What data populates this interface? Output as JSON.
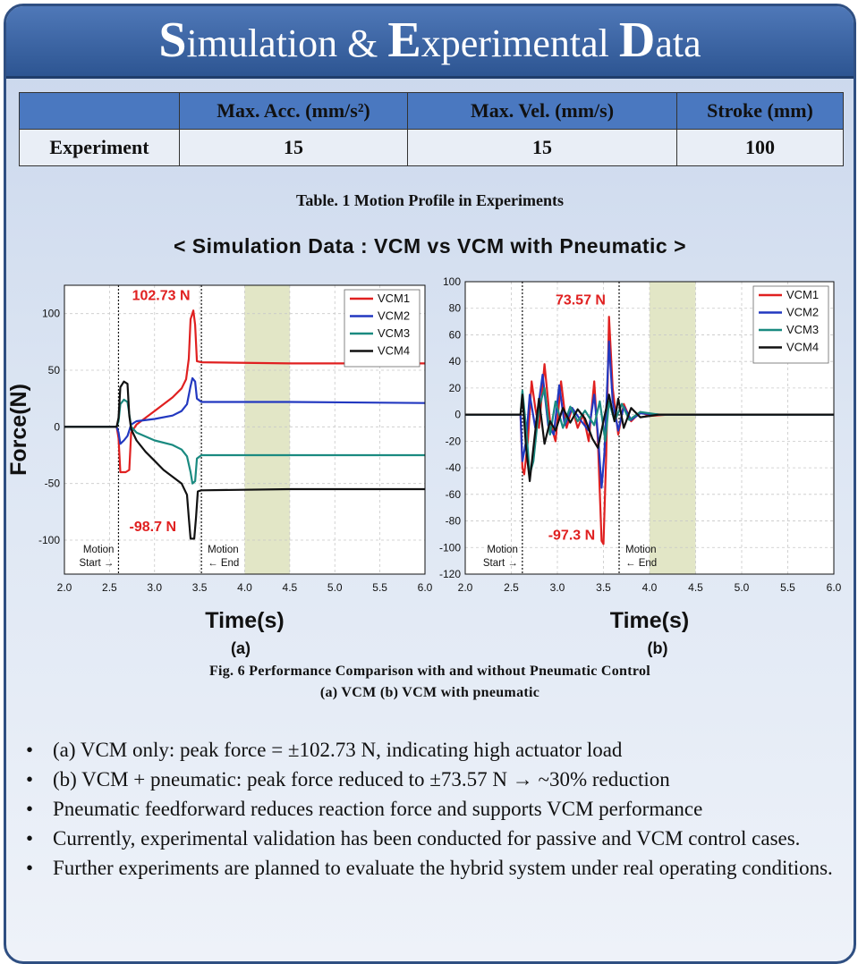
{
  "title": {
    "parts": [
      [
        "S",
        "imulation & "
      ],
      [
        "E",
        "xperimental "
      ],
      [
        "D",
        "ata"
      ]
    ]
  },
  "table": {
    "headers": [
      "",
      "Max. Acc. (mm/s²)",
      "Max. Vel. (mm/s)",
      "Stroke (mm)"
    ],
    "rows": [
      [
        "Experiment",
        "15",
        "15",
        "100"
      ]
    ],
    "caption": "Table. 1 Motion Profile in Experiments"
  },
  "section_title": "< Simulation Data : VCM vs VCM with Pneumatic >",
  "chart_data": [
    {
      "type": "line",
      "panel_label": "(a)",
      "xlabel": "Time(s)",
      "ylabel": "Force(N)",
      "xlim": [
        2.0,
        6.0
      ],
      "ylim": [
        -130,
        125
      ],
      "xticks": [
        2.0,
        2.5,
        3.0,
        3.5,
        4.0,
        4.5,
        5.0,
        5.5,
        6.0
      ],
      "yticks": [
        -100,
        -50,
        0,
        50,
        100
      ],
      "grid": true,
      "legend": "top-right",
      "shaded_region": [
        4.0,
        4.5
      ],
      "markers": [
        {
          "x": 2.6,
          "label": "Motion Start →",
          "side": "left"
        },
        {
          "x": 3.52,
          "label": "Motion ← End",
          "side": "right"
        }
      ],
      "annotations": [
        {
          "text": "102.73 N",
          "x": 2.75,
          "y": 112
        },
        {
          "text": "-98.7 N",
          "x": 2.72,
          "y": -92
        }
      ],
      "series": [
        {
          "name": "VCM1",
          "color": "#e02020",
          "points": [
            [
              2.0,
              0
            ],
            [
              2.58,
              0
            ],
            [
              2.6,
              -10
            ],
            [
              2.62,
              -40
            ],
            [
              2.68,
              -40
            ],
            [
              2.72,
              -38
            ],
            [
              2.74,
              -5
            ],
            [
              2.8,
              2
            ],
            [
              3.0,
              14
            ],
            [
              3.2,
              26
            ],
            [
              3.3,
              34
            ],
            [
              3.35,
              42
            ],
            [
              3.38,
              60
            ],
            [
              3.4,
              95
            ],
            [
              3.43,
              102.7
            ],
            [
              3.45,
              90
            ],
            [
              3.47,
              58
            ],
            [
              3.52,
              57
            ],
            [
              4.5,
              56
            ],
            [
              6.0,
              56
            ]
          ]
        },
        {
          "name": "VCM2",
          "color": "#2238c0",
          "points": [
            [
              2.0,
              0
            ],
            [
              2.58,
              0
            ],
            [
              2.6,
              -5
            ],
            [
              2.62,
              -15
            ],
            [
              2.66,
              -12
            ],
            [
              2.7,
              -8
            ],
            [
              2.74,
              2
            ],
            [
              2.8,
              5
            ],
            [
              3.0,
              7
            ],
            [
              3.2,
              10
            ],
            [
              3.3,
              14
            ],
            [
              3.36,
              20
            ],
            [
              3.4,
              36
            ],
            [
              3.42,
              43
            ],
            [
              3.45,
              40
            ],
            [
              3.47,
              25
            ],
            [
              3.52,
              22
            ],
            [
              4.5,
              22
            ],
            [
              6.0,
              21
            ]
          ]
        },
        {
          "name": "VCM3",
          "color": "#1a8a80",
          "points": [
            [
              2.0,
              0
            ],
            [
              2.58,
              0
            ],
            [
              2.6,
              5
            ],
            [
              2.62,
              20
            ],
            [
              2.66,
              24
            ],
            [
              2.7,
              22
            ],
            [
              2.74,
              0
            ],
            [
              2.8,
              -5
            ],
            [
              3.0,
              -12
            ],
            [
              3.2,
              -16
            ],
            [
              3.3,
              -20
            ],
            [
              3.36,
              -26
            ],
            [
              3.4,
              -40
            ],
            [
              3.42,
              -50
            ],
            [
              3.45,
              -48
            ],
            [
              3.47,
              -28
            ],
            [
              3.52,
              -25
            ],
            [
              4.5,
              -25
            ],
            [
              6.0,
              -25
            ]
          ]
        },
        {
          "name": "VCM4",
          "color": "#111111",
          "points": [
            [
              2.0,
              0
            ],
            [
              2.58,
              0
            ],
            [
              2.6,
              8
            ],
            [
              2.62,
              35
            ],
            [
              2.66,
              40
            ],
            [
              2.7,
              38
            ],
            [
              2.72,
              10
            ],
            [
              2.74,
              -2
            ],
            [
              2.8,
              -12
            ],
            [
              2.9,
              -22
            ],
            [
              3.0,
              -30
            ],
            [
              3.1,
              -38
            ],
            [
              3.2,
              -44
            ],
            [
              3.3,
              -50
            ],
            [
              3.36,
              -60
            ],
            [
              3.38,
              -80
            ],
            [
              3.4,
              -98.7
            ],
            [
              3.44,
              -98.7
            ],
            [
              3.46,
              -80
            ],
            [
              3.48,
              -57
            ],
            [
              3.52,
              -56
            ],
            [
              4.5,
              -55
            ],
            [
              6.0,
              -55
            ]
          ]
        }
      ]
    },
    {
      "type": "line",
      "panel_label": "(b)",
      "xlabel": "Time(s)",
      "ylabel": "",
      "xlim": [
        2.0,
        6.0
      ],
      "ylim": [
        -120,
        100
      ],
      "xticks": [
        2.0,
        2.5,
        3.0,
        3.5,
        4.0,
        4.5,
        5.0,
        5.5,
        6.0
      ],
      "yticks": [
        -120,
        -100,
        -80,
        -60,
        -40,
        -20,
        0,
        20,
        40,
        60,
        80,
        100
      ],
      "grid": true,
      "legend": "top-right",
      "shaded_region": [
        4.0,
        4.5
      ],
      "markers": [
        {
          "x": 2.62,
          "label": "Motion Start →",
          "side": "left"
        },
        {
          "x": 3.67,
          "label": "Motion ← End",
          "side": "right"
        }
      ],
      "annotations": [
        {
          "text": "73.57 N",
          "x": 2.98,
          "y": 83
        },
        {
          "text": "-97.3 N",
          "x": 2.9,
          "y": -94
        }
      ],
      "series": [
        {
          "name": "VCM1",
          "color": "#e02020",
          "points": [
            [
              2.0,
              0
            ],
            [
              2.6,
              0
            ],
            [
              2.62,
              -40
            ],
            [
              2.64,
              -45
            ],
            [
              2.68,
              -20
            ],
            [
              2.72,
              25
            ],
            [
              2.76,
              5
            ],
            [
              2.8,
              -10
            ],
            [
              2.86,
              38
            ],
            [
              2.92,
              -5
            ],
            [
              2.98,
              -20
            ],
            [
              3.04,
              25
            ],
            [
              3.1,
              -10
            ],
            [
              3.16,
              5
            ],
            [
              3.22,
              -10
            ],
            [
              3.28,
              0
            ],
            [
              3.34,
              -20
            ],
            [
              3.4,
              25
            ],
            [
              3.44,
              -20
            ],
            [
              3.48,
              -95
            ],
            [
              3.5,
              -97.3
            ],
            [
              3.53,
              -30
            ],
            [
              3.56,
              73.6
            ],
            [
              3.6,
              20
            ],
            [
              3.66,
              -15
            ],
            [
              3.72,
              8
            ],
            [
              3.8,
              -5
            ],
            [
              3.9,
              2
            ],
            [
              4.0,
              -1
            ],
            [
              4.2,
              0
            ],
            [
              6.0,
              0
            ]
          ]
        },
        {
          "name": "VCM2",
          "color": "#2238c0",
          "points": [
            [
              2.0,
              0
            ],
            [
              2.6,
              0
            ],
            [
              2.62,
              -35
            ],
            [
              2.66,
              -20
            ],
            [
              2.7,
              15
            ],
            [
              2.76,
              -10
            ],
            [
              2.84,
              30
            ],
            [
              2.9,
              -8
            ],
            [
              2.96,
              -15
            ],
            [
              3.02,
              22
            ],
            [
              3.08,
              -8
            ],
            [
              3.16,
              5
            ],
            [
              3.26,
              -5
            ],
            [
              3.34,
              -12
            ],
            [
              3.4,
              15
            ],
            [
              3.44,
              -15
            ],
            [
              3.48,
              -55
            ],
            [
              3.51,
              -30
            ],
            [
              3.56,
              55
            ],
            [
              3.6,
              10
            ],
            [
              3.66,
              -12
            ],
            [
              3.72,
              6
            ],
            [
              3.8,
              -4
            ],
            [
              3.9,
              1
            ],
            [
              4.1,
              0
            ],
            [
              6.0,
              0
            ]
          ]
        },
        {
          "name": "VCM3",
          "color": "#1a8a80",
          "points": [
            [
              2.0,
              0
            ],
            [
              2.6,
              0
            ],
            [
              2.62,
              18
            ],
            [
              2.66,
              -10
            ],
            [
              2.7,
              -45
            ],
            [
              2.74,
              -35
            ],
            [
              2.8,
              5
            ],
            [
              2.86,
              20
            ],
            [
              2.92,
              -15
            ],
            [
              2.98,
              10
            ],
            [
              3.06,
              -10
            ],
            [
              3.14,
              6
            ],
            [
              3.22,
              -5
            ],
            [
              3.3,
              3
            ],
            [
              3.4,
              -8
            ],
            [
              3.46,
              10
            ],
            [
              3.52,
              -20
            ],
            [
              3.56,
              10
            ],
            [
              3.62,
              -5
            ],
            [
              3.7,
              8
            ],
            [
              3.78,
              -4
            ],
            [
              3.9,
              2
            ],
            [
              4.1,
              0
            ],
            [
              6.0,
              0
            ]
          ]
        },
        {
          "name": "VCM4",
          "color": "#111111",
          "points": [
            [
              2.0,
              0
            ],
            [
              2.6,
              0
            ],
            [
              2.62,
              15
            ],
            [
              2.66,
              -25
            ],
            [
              2.7,
              -50
            ],
            [
              2.74,
              -25
            ],
            [
              2.8,
              12
            ],
            [
              2.86,
              -22
            ],
            [
              2.92,
              -5
            ],
            [
              2.98,
              -12
            ],
            [
              3.06,
              5
            ],
            [
              3.14,
              -6
            ],
            [
              3.22,
              4
            ],
            [
              3.3,
              -3
            ],
            [
              3.38,
              -18
            ],
            [
              3.44,
              -25
            ],
            [
              3.5,
              -5
            ],
            [
              3.56,
              15
            ],
            [
              3.62,
              -5
            ],
            [
              3.66,
              12
            ],
            [
              3.72,
              -10
            ],
            [
              3.8,
              5
            ],
            [
              3.9,
              -2
            ],
            [
              4.1,
              0
            ],
            [
              6.0,
              0
            ]
          ]
        }
      ]
    }
  ],
  "figure_caption": {
    "line1": "Fig. 6 Performance Comparison with and without Pneumatic Control",
    "line2": "(a) VCM (b) VCM with pneumatic"
  },
  "bullets": [
    "(a) VCM only: peak force = ±102.73 N, indicating high actuator load",
    "(b) VCM + pneumatic: peak force reduced to ±73.57 N → ~30% reduction",
    "Pneumatic feedforward reduces reaction force and supports VCM performance",
    "Currently, experimental validation has been conducted for passive and VCM control cases.",
    "Further experiments are planned to evaluate the hybrid system under real operating conditions."
  ],
  "bullet_symbol": "•",
  "colors": {
    "title_bar": "#3a63a4",
    "header_fill": "#4a78c0",
    "frame_border": "#2f4f82",
    "shade": "#e2e6c6"
  }
}
